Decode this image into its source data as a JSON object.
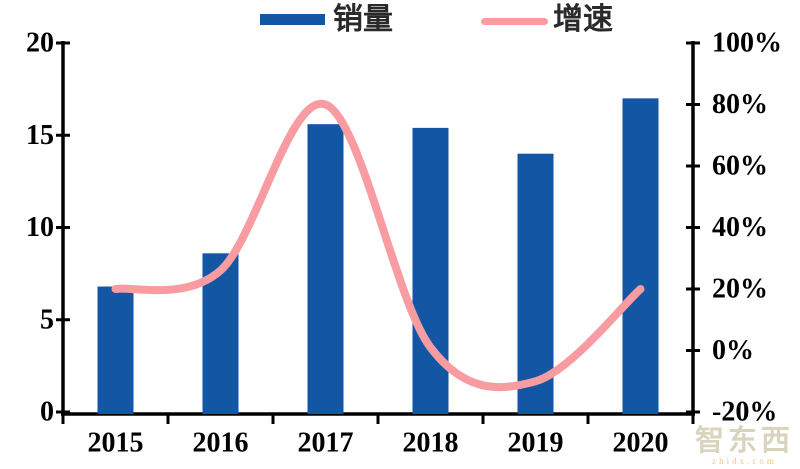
{
  "legend": {
    "bar_label": "销量",
    "line_label": "增速"
  },
  "watermark": {
    "text": "智东西",
    "subtext": "zhidx.com"
  },
  "colors": {
    "bar_blue": "#1256A4",
    "line_pink": "#F89CA2",
    "axis_black": "#000000"
  },
  "chart_data": {
    "type": "bar",
    "subtype": "combo-bar-line-dual-axis",
    "title": "",
    "categories": [
      "2015",
      "2016",
      "2017",
      "2018",
      "2019",
      "2020"
    ],
    "series": [
      {
        "name": "销量",
        "type": "bar",
        "axis": "left",
        "values": [
          6.8,
          8.6,
          15.6,
          15.4,
          14.0,
          17.0
        ],
        "color": "#1256A4"
      },
      {
        "name": "增速",
        "type": "line",
        "axis": "right",
        "values_pct": [
          20,
          26,
          80,
          1,
          -10,
          20
        ],
        "color": "#F89CA2",
        "smooth": true
      }
    ],
    "left_axis": {
      "min": 0,
      "max": 20,
      "ticks": [
        0,
        5,
        10,
        15,
        20
      ],
      "tick_labels": [
        "0",
        "5",
        "10",
        "15",
        "20"
      ]
    },
    "right_axis": {
      "min": -20,
      "max": 100,
      "ticks": [
        -20,
        0,
        20,
        40,
        60,
        80,
        100
      ],
      "tick_labels": [
        "-20%",
        "0%",
        "20%",
        "40%",
        "60%",
        "80%",
        "100%"
      ]
    },
    "grid": false,
    "legend_position": "top-center"
  }
}
